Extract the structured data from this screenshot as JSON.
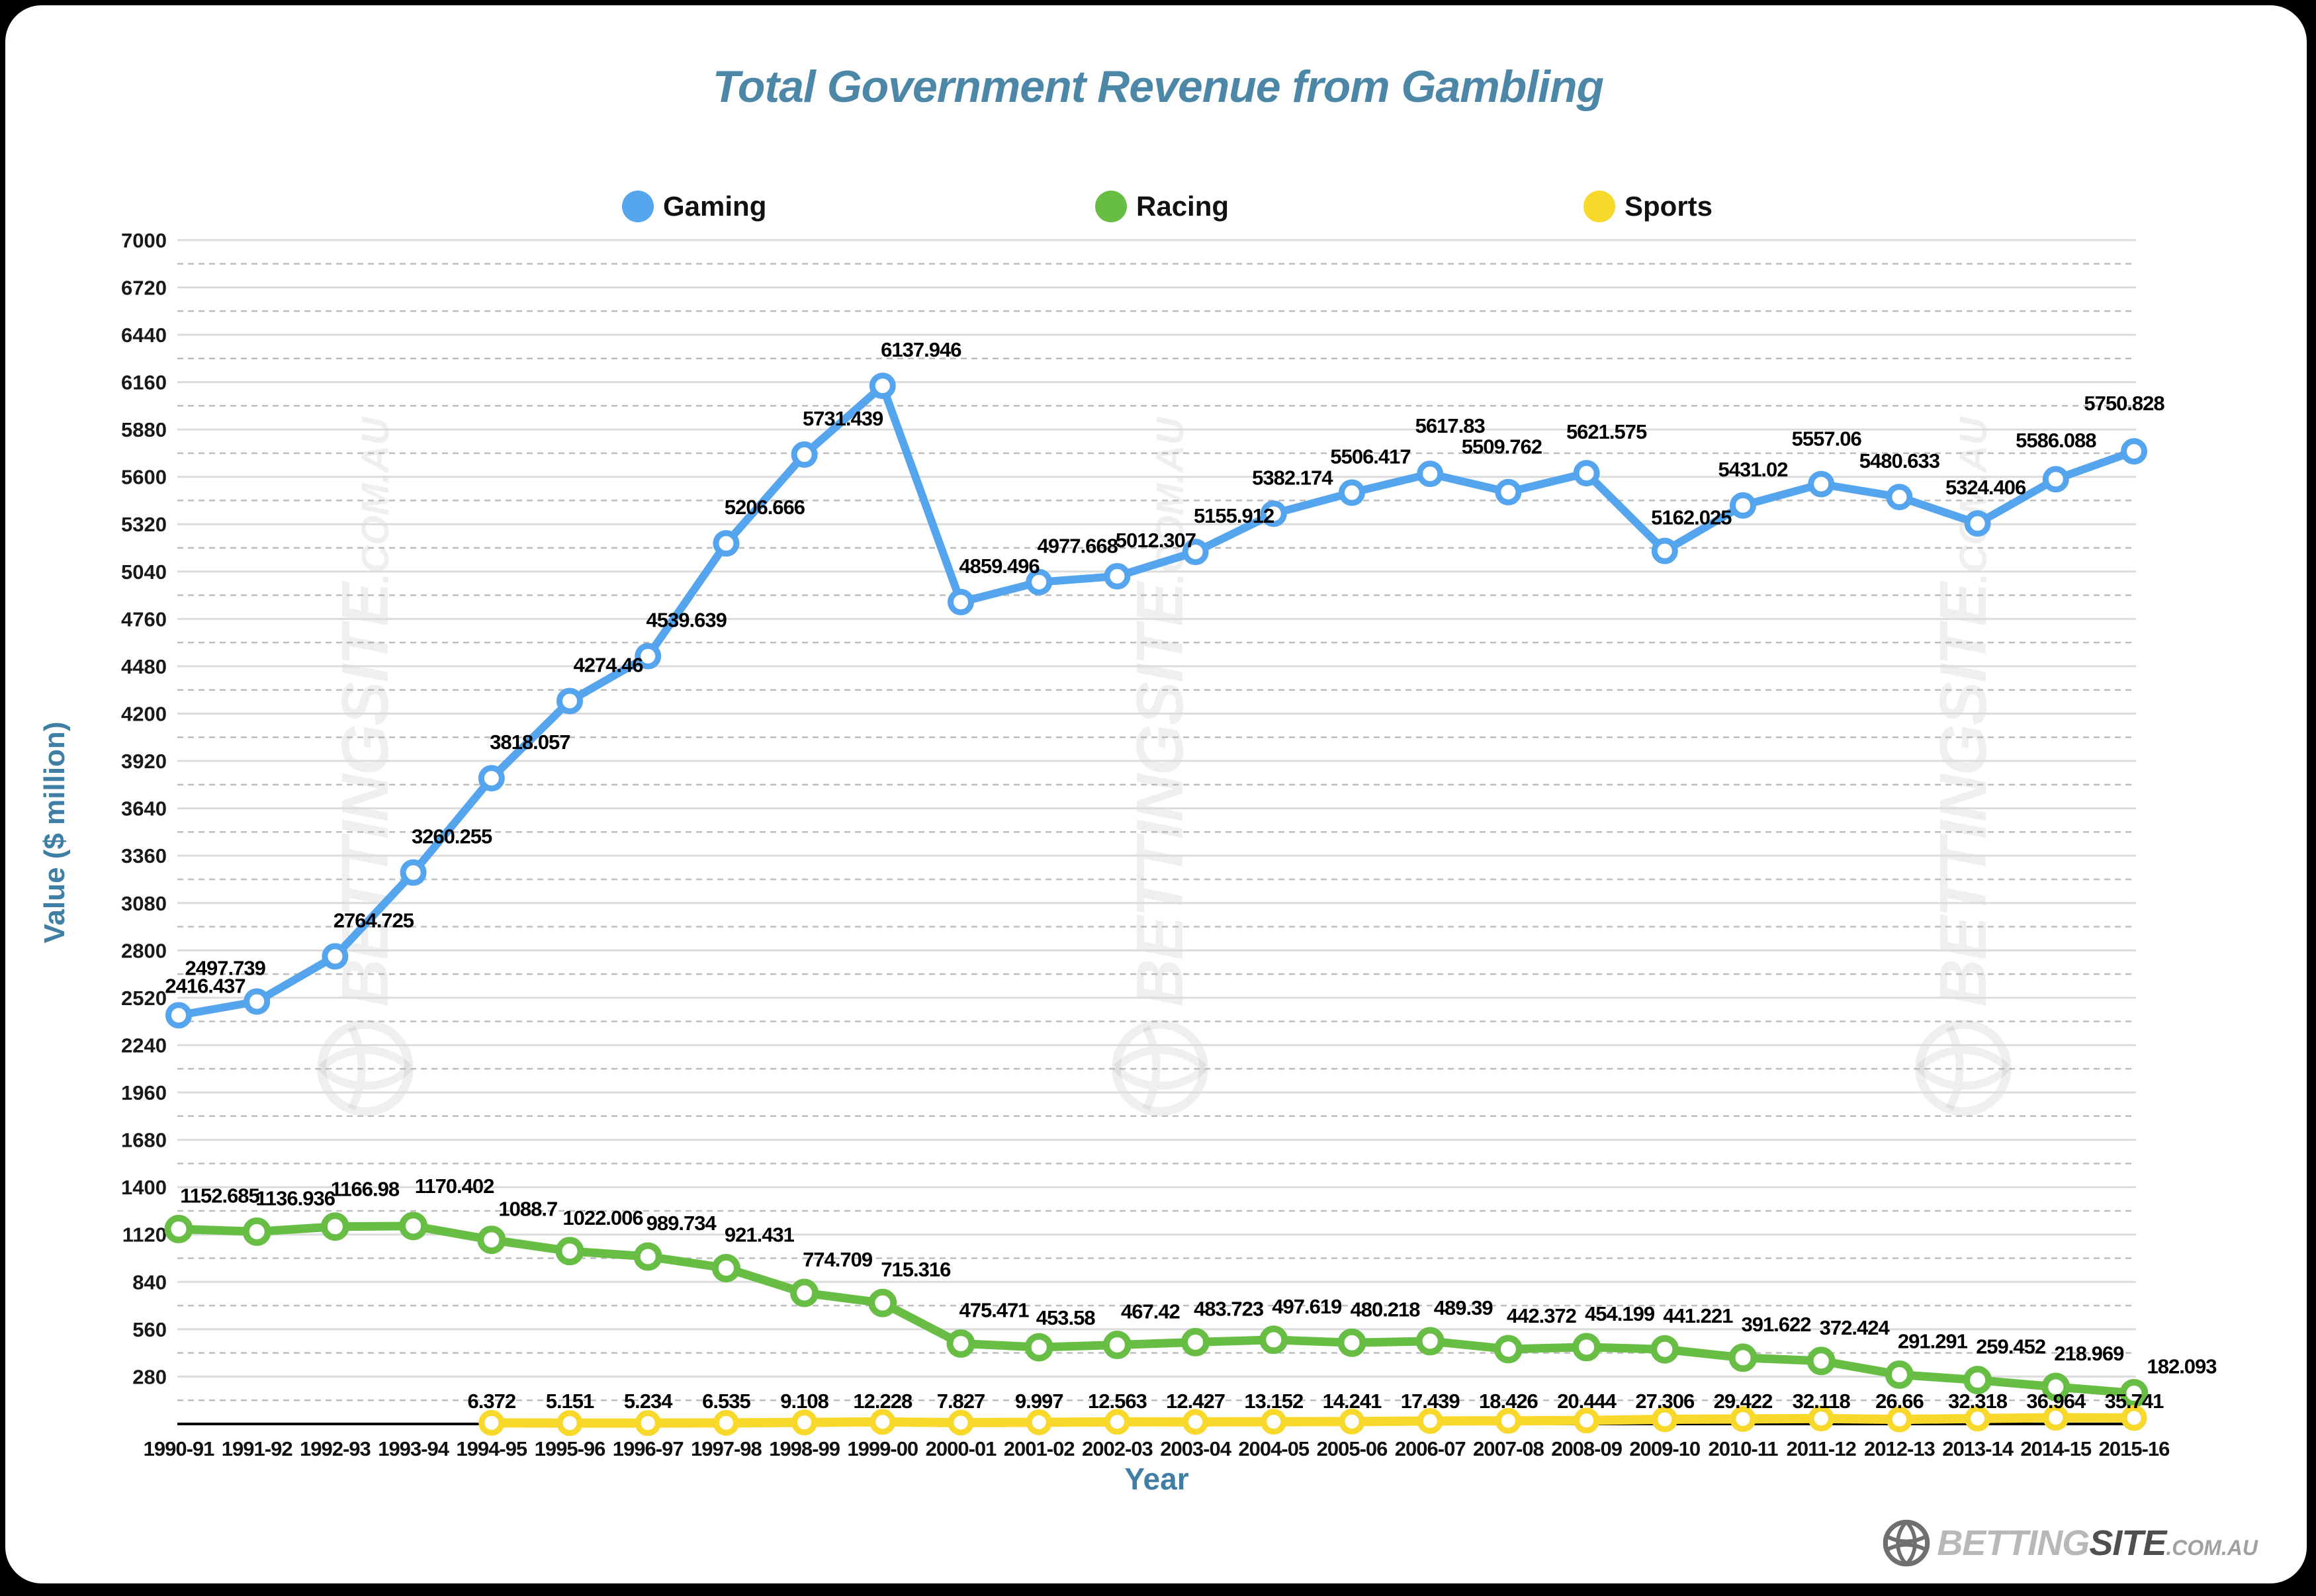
{
  "header": {
    "title": "Total Government Revenue from Gambling"
  },
  "legend": {
    "items": [
      {
        "label": "Gaming",
        "color": "#55a4ee"
      },
      {
        "label": "Racing",
        "color": "#68bd45"
      },
      {
        "label": "Sports",
        "color": "#f8d82a"
      }
    ]
  },
  "axes": {
    "y_title": "Value ($ million)",
    "x_title": "Year"
  },
  "watermark": {
    "brand": "BETTINGSITE",
    "tld": ".COM.AU"
  },
  "logo": {
    "brand_light": "BETTING",
    "brand_dark": "SITE",
    "tld": ".COM.AU"
  },
  "chart_data": {
    "type": "line",
    "title": "Total Government Revenue from Gambling",
    "xlabel": "Year",
    "ylabel": "Value ($ million)",
    "ylim": [
      0,
      7000
    ],
    "y_major_step": 280,
    "y_minor_step": 140,
    "grid": "horizontal",
    "legend_position": "top",
    "data_labels": true,
    "y_ticks": [
      280,
      560,
      840,
      1120,
      1400,
      1680,
      1960,
      2240,
      2520,
      2800,
      3080,
      3360,
      3640,
      3920,
      4200,
      4480,
      4760,
      5040,
      5320,
      5600,
      5880,
      6160,
      6440,
      6720,
      7000
    ],
    "categories": [
      "1990-91",
      "1991-92",
      "1992-93",
      "1993-94",
      "1994-95",
      "1995-96",
      "1996-97",
      "1997-98",
      "1998-99",
      "1999-00",
      "2000-01",
      "2001-02",
      "2002-03",
      "2003-04",
      "2004-05",
      "2005-06",
      "2006-07",
      "2007-08",
      "2008-09",
      "2009-10",
      "2010-11",
      "2011-12",
      "2012-13",
      "2013-14",
      "2014-15",
      "2015-16"
    ],
    "series": [
      {
        "name": "Gaming",
        "color": "#55a4ee",
        "start_index": 0,
        "values": [
          2416.437,
          2497.739,
          2764.725,
          3260.255,
          3818.057,
          4274.46,
          4539.639,
          5206.666,
          5731.439,
          6137.946,
          4859.496,
          4977.668,
          5012.307,
          5155.912,
          5382.174,
          5506.417,
          5617.83,
          5509.762,
          5621.575,
          5162.025,
          5431.02,
          5557.06,
          5480.633,
          5324.406,
          5586.088,
          5750.828
        ]
      },
      {
        "name": "Racing",
        "color": "#68bd45",
        "start_index": 0,
        "values": [
          1152.685,
          1136.936,
          1166.98,
          1170.402,
          1088.7,
          1022.006,
          989.734,
          921.431,
          774.709,
          715.316,
          475.471,
          453.58,
          467.42,
          483.723,
          497.619,
          480.218,
          489.39,
          442.372,
          454.199,
          441.221,
          391.622,
          372.424,
          291.291,
          259.452,
          218.969,
          182.093
        ]
      },
      {
        "name": "Sports",
        "color": "#f8d82a",
        "start_index": 4,
        "values": [
          6.372,
          5.151,
          5.234,
          6.535,
          9.108,
          12.228,
          7.827,
          9.997,
          12.563,
          12.427,
          13.152,
          14.241,
          17.439,
          18.426,
          20.444,
          27.306,
          29.422,
          32.118,
          26.66,
          32.318,
          36.964,
          35.741
        ]
      }
    ]
  }
}
